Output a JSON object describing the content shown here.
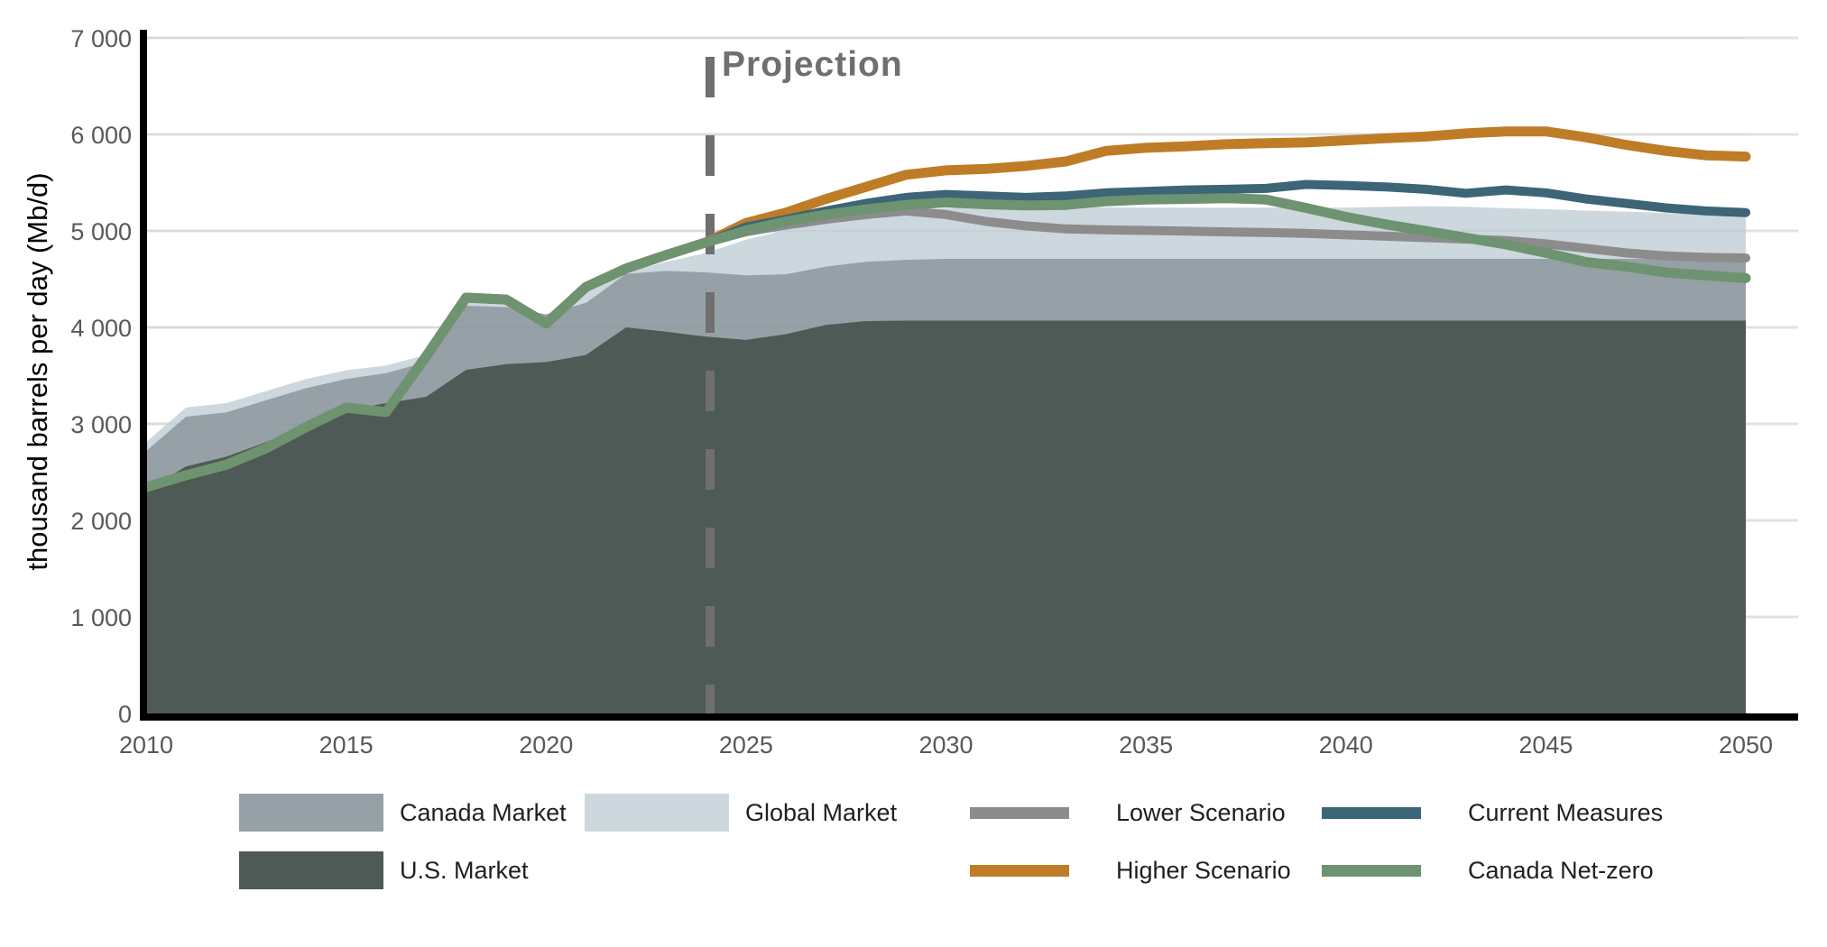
{
  "chart_data": {
    "type": "area+line",
    "title": "",
    "ylabel": "thousand barrels per day (Mb/d)",
    "xlim": [
      2010,
      2050
    ],
    "ylim": [
      0,
      7000
    ],
    "grid": true,
    "x_ticks": [
      {
        "v": 2010,
        "label": "2010"
      },
      {
        "v": 2015,
        "label": "2015"
      },
      {
        "v": 2020,
        "label": "2020"
      },
      {
        "v": 2025,
        "label": "2025"
      },
      {
        "v": 2030,
        "label": "2030"
      },
      {
        "v": 2035,
        "label": "2035"
      },
      {
        "v": 2040,
        "label": "2040"
      },
      {
        "v": 2045,
        "label": "2045"
      },
      {
        "v": 2050,
        "label": "2050"
      }
    ],
    "y_ticks": [
      {
        "v": 0,
        "label": "0"
      },
      {
        "v": 1000,
        "label": "1 000"
      },
      {
        "v": 2000,
        "label": "2 000"
      },
      {
        "v": 3000,
        "label": "3 000"
      },
      {
        "v": 4000,
        "label": "4 000"
      },
      {
        "v": 5000,
        "label": "5 000"
      },
      {
        "v": 6000,
        "label": "6 000"
      },
      {
        "v": 7000,
        "label": "7 000"
      }
    ],
    "projection": {
      "year": 2024.1,
      "label": "Projection",
      "color": "#6f6f6f"
    },
    "areas": [
      {
        "name": "Global Market",
        "color": "#cdd7de",
        "values": [
          2810,
          3170,
          3215,
          3340,
          3465,
          3555,
          3605,
          3715,
          4305,
          4330,
          4100,
          4380,
          4570,
          4680,
          4770,
          4910,
          5010,
          5100,
          5160,
          5210,
          5235,
          5245,
          5250,
          5245,
          5245,
          5240,
          5240,
          5240,
          5240,
          5240,
          5240,
          5250,
          5255,
          5250,
          5235,
          5225,
          5210,
          5200,
          5185,
          5170,
          5160
        ]
      },
      {
        "name": "Canada Market",
        "color": "#95a1a6",
        "values": [
          2720,
          3075,
          3120,
          3245,
          3370,
          3465,
          3525,
          3640,
          4225,
          4210,
          4135,
          4255,
          4555,
          4585,
          4570,
          4540,
          4550,
          4630,
          4680,
          4700,
          4710,
          4710,
          4710,
          4710,
          4710,
          4710,
          4710,
          4710,
          4710,
          4710,
          4710,
          4710,
          4710,
          4710,
          4710,
          4710,
          4710,
          4710,
          4710,
          4710,
          4710
        ]
      },
      {
        "name": "U.S. Market",
        "color": "#4d5a55",
        "values": [
          2310,
          2560,
          2660,
          2810,
          3000,
          3140,
          3215,
          3280,
          3560,
          3620,
          3640,
          3715,
          4000,
          3955,
          3905,
          3870,
          3930,
          4025,
          4065,
          4070,
          4070,
          4070,
          4070,
          4070,
          4070,
          4070,
          4070,
          4070,
          4070,
          4070,
          4070,
          4070,
          4070,
          4070,
          4070,
          4070,
          4070,
          4070,
          4070,
          4070,
          4070
        ]
      }
    ],
    "lines": [
      {
        "name": "Lower Scenario",
        "color": "#8c8c8c",
        "width": 10,
        "values": [
          2344,
          2468,
          2577,
          2748,
          2966,
          3168,
          3122,
          3700,
          4308,
          4289,
          4040,
          4420,
          4610,
          4750,
          4880,
          4990,
          5060,
          5120,
          5169,
          5207,
          5169,
          5098,
          5051,
          5021,
          5010,
          5005,
          4998,
          4990,
          4983,
          4975,
          4959,
          4945,
          4930,
          4915,
          4900,
          4865,
          4820,
          4772,
          4741,
          4725,
          4720
        ]
      },
      {
        "name": "Higher Scenario",
        "color": "#bf7c26",
        "width": 11,
        "values": [
          2344,
          2468,
          2577,
          2748,
          2966,
          3168,
          3122,
          3700,
          4308,
          4289,
          4040,
          4420,
          4610,
          4750,
          4880,
          5082,
          5190,
          5331,
          5456,
          5581,
          5627,
          5642,
          5673,
          5720,
          5829,
          5861,
          5876,
          5898,
          5908,
          5917,
          5938,
          5960,
          5978,
          6010,
          6031,
          6031,
          5970,
          5892,
          5829,
          5783,
          5770
        ]
      },
      {
        "name": "Current Measures",
        "color": "#3c6577",
        "width": 10,
        "values": [
          2344,
          2468,
          2577,
          2748,
          2966,
          3168,
          3122,
          3700,
          4308,
          4289,
          4040,
          4420,
          4610,
          4750,
          4880,
          5040,
          5120,
          5207,
          5285,
          5347,
          5378,
          5363,
          5347,
          5363,
          5394,
          5409,
          5424,
          5431,
          5440,
          5481,
          5471,
          5455,
          5431,
          5390,
          5424,
          5394,
          5331,
          5285,
          5238,
          5207,
          5190
        ]
      },
      {
        "name": "Canada Net-zero",
        "color": "#6d9370",
        "width": 11,
        "values": [
          2344,
          2468,
          2577,
          2748,
          2966,
          3168,
          3122,
          3700,
          4308,
          4289,
          4040,
          4420,
          4610,
          4750,
          4880,
          5005,
          5098,
          5169,
          5222,
          5269,
          5294,
          5276,
          5264,
          5269,
          5307,
          5325,
          5331,
          5338,
          5325,
          5238,
          5145,
          5067,
          5000,
          4930,
          4860,
          4772,
          4678,
          4631,
          4569,
          4538,
          4510
        ]
      }
    ]
  },
  "legend": {
    "areas": [
      {
        "label": "Canada Market",
        "color": "#95a1a6"
      },
      {
        "label": "Global Market",
        "color": "#cdd7de"
      },
      {
        "label": "U.S. Market",
        "color": "#4d5a55"
      }
    ],
    "lines": [
      {
        "label": "Lower Scenario",
        "color": "#8c8c8c"
      },
      {
        "label": "Current Measures",
        "color": "#3c6577"
      },
      {
        "label": "Higher Scenario",
        "color": "#bf7c26"
      },
      {
        "label": "Canada Net-zero",
        "color": "#6d9370"
      }
    ]
  }
}
